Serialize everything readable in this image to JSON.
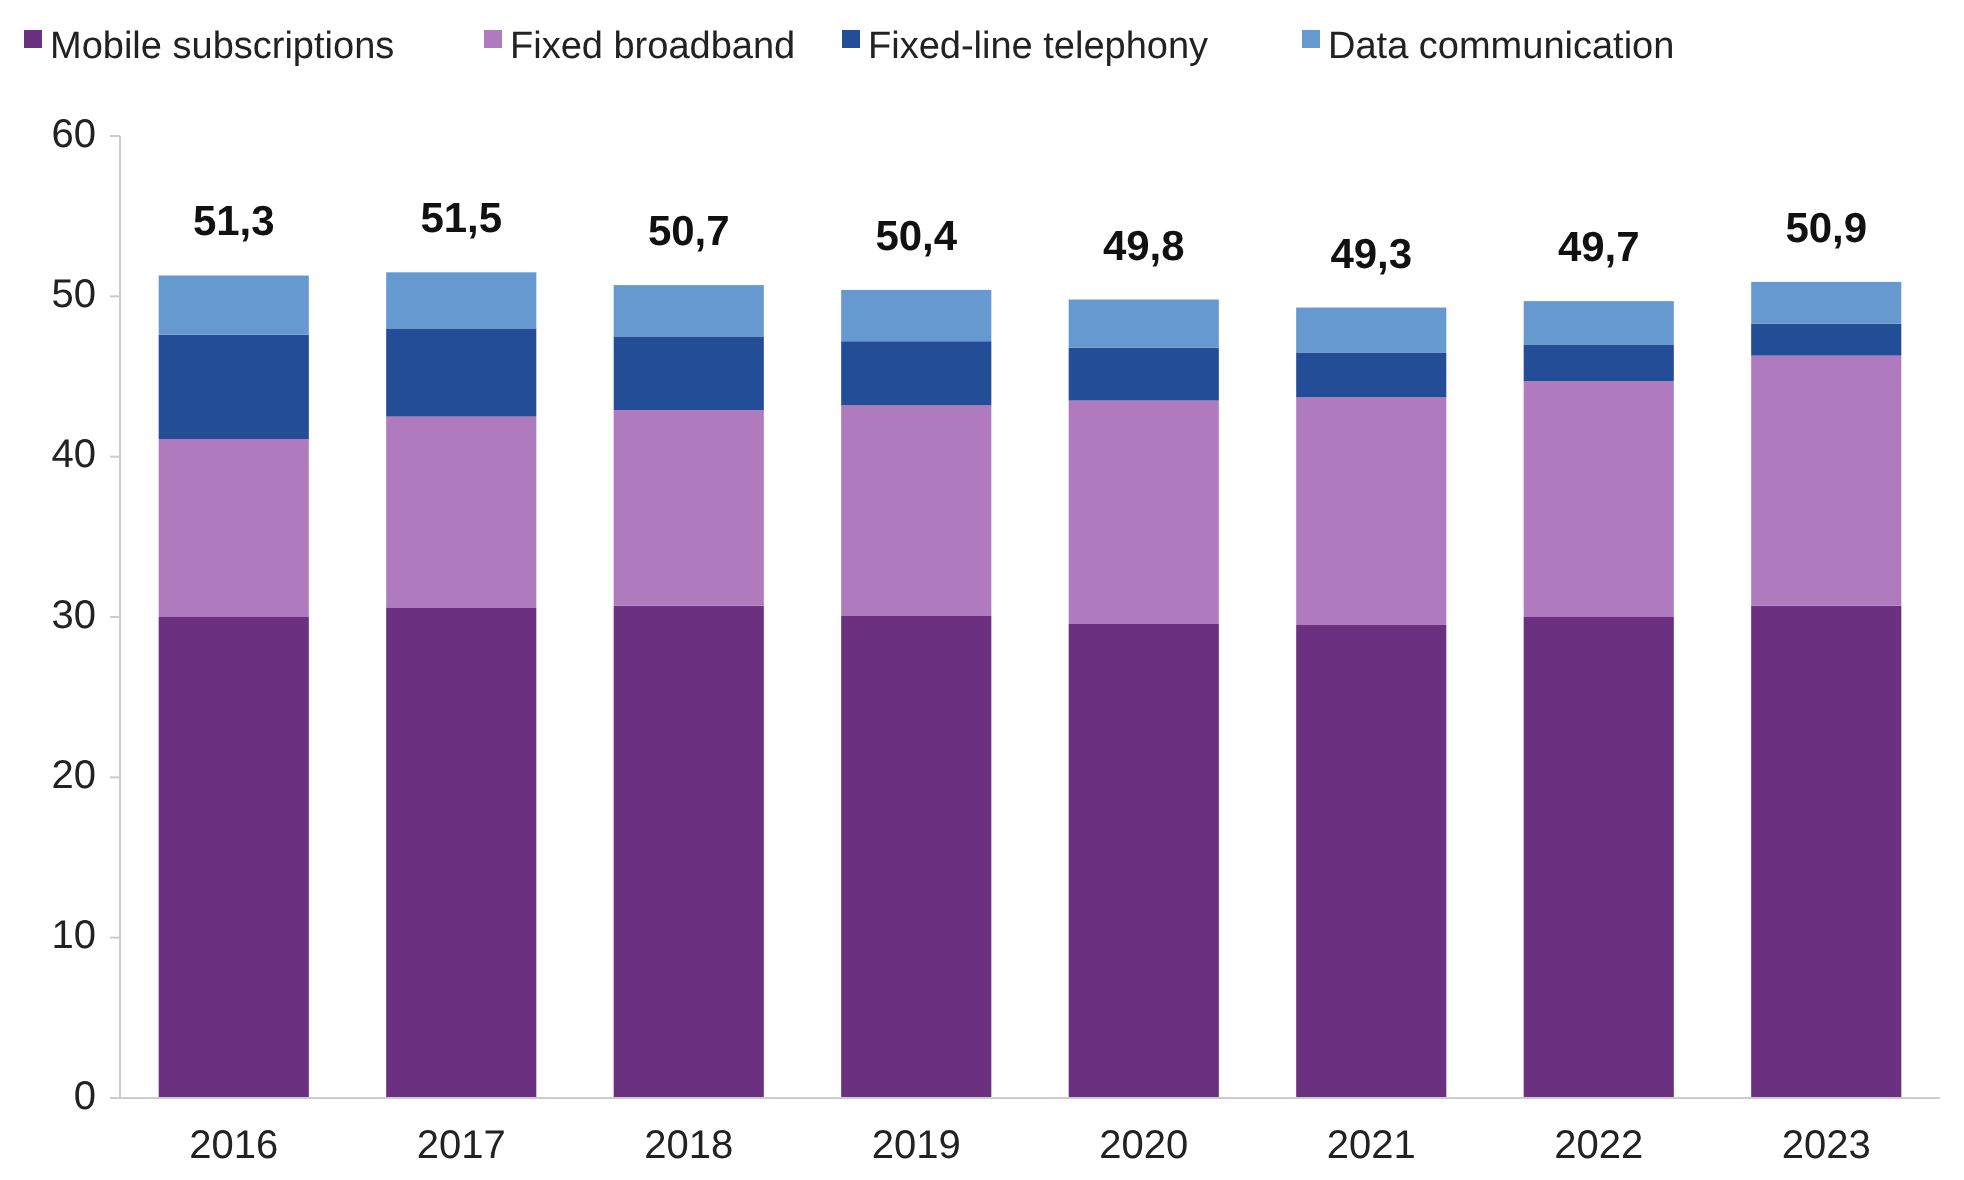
{
  "chart_data": {
    "type": "bar",
    "stacked": true,
    "categories": [
      "2016",
      "2017",
      "2018",
      "2019",
      "2020",
      "2021",
      "2022",
      "2023"
    ],
    "series": [
      {
        "name": "Mobile subscriptions",
        "color": "#6b3180",
        "values": [
          30.0,
          30.6,
          30.7,
          30.1,
          29.6,
          29.5,
          30.0,
          30.7
        ]
      },
      {
        "name": "Fixed broadband",
        "color": "#b07bbe",
        "values": [
          11.1,
          11.9,
          12.2,
          13.1,
          13.9,
          14.2,
          14.7,
          15.6
        ]
      },
      {
        "name": "Fixed-line telephony",
        "color": "#234d96",
        "values": [
          6.5,
          5.5,
          4.6,
          4.0,
          3.3,
          2.8,
          2.3,
          2.0
        ]
      },
      {
        "name": "Data communication",
        "color": "#6699cf",
        "values": [
          3.7,
          3.5,
          3.2,
          3.2,
          3.0,
          2.8,
          2.7,
          2.6
        ]
      }
    ],
    "totals": [
      "51,3",
      "51,5",
      "50,7",
      "50,4",
      "49,8",
      "49,3",
      "49,7",
      "50,9"
    ],
    "ylim": [
      0,
      60
    ],
    "yticks": [
      0,
      10,
      20,
      30,
      40,
      50,
      60
    ],
    "grid": false,
    "legend": "top"
  }
}
